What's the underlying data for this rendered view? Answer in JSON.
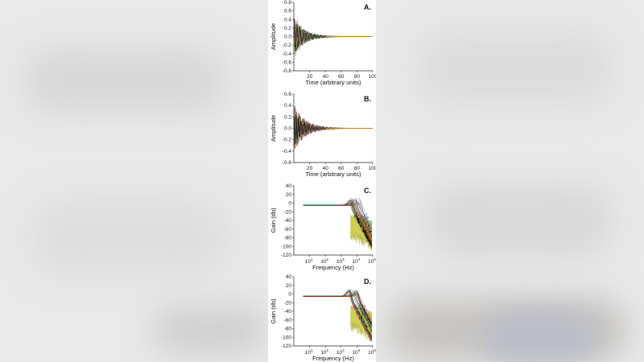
{
  "chart_data": [
    {
      "type": "line",
      "panel": "A.",
      "xlabel": "Time (arbitrary units)",
      "ylabel": "Amplitude",
      "xlim": [
        0,
        100
      ],
      "ylim": [
        -0.8,
        0.8
      ],
      "x_ticks": [
        "20",
        "40",
        "60",
        "80",
        "100"
      ],
      "y_ticks": [
        "0.8",
        "0.6",
        "0.4",
        "0.2",
        "0.0",
        "-0.2",
        "-0.4",
        "-0.6",
        "-0.8"
      ],
      "peak_amplitude": 0.6,
      "decay_to_zero_at": 40
    },
    {
      "type": "line",
      "panel": "B.",
      "xlabel": "Time (arbitrary units)",
      "ylabel": "Amplitude",
      "xlim": [
        0,
        100
      ],
      "ylim": [
        -0.6,
        0.6
      ],
      "x_ticks": [
        "20",
        "40",
        "60",
        "80",
        "100"
      ],
      "y_ticks": [
        "0.6",
        "0.4",
        "0.2",
        "0.0",
        "-0.2",
        "-0.4",
        "-0.6"
      ],
      "peak_amplitude": 0.5,
      "decay_to_zero_at": 40
    },
    {
      "type": "line",
      "panel": "C.",
      "xlabel": "Frequency (Hz)",
      "ylabel": "Gain (db)",
      "xscale": "log",
      "xlim": [
        1,
        100000
      ],
      "ylim": [
        -120,
        40
      ],
      "x_ticks": [
        {
          "base": "10",
          "exp": "1"
        },
        {
          "base": "10",
          "exp": "2"
        },
        {
          "base": "10",
          "exp": "3"
        },
        {
          "base": "10",
          "exp": "4"
        },
        {
          "base": "10",
          "exp": "5"
        }
      ],
      "y_ticks": [
        "40",
        "20",
        "0",
        "-20",
        "-40",
        "-60",
        "-80",
        "-100",
        "-120"
      ],
      "flat_gain_db": -5,
      "resonance_peak_db": 15,
      "rolloff_floor_db": -100
    },
    {
      "type": "line",
      "panel": "D.",
      "xlabel": "Frequency (Hz)",
      "ylabel": "Gain (db)",
      "xscale": "log",
      "xlim": [
        1,
        100000
      ],
      "ylim": [
        -120,
        40
      ],
      "x_ticks": [
        {
          "base": "10",
          "exp": "1"
        },
        {
          "base": "10",
          "exp": "2"
        },
        {
          "base": "10",
          "exp": "3"
        },
        {
          "base": "10",
          "exp": "4"
        },
        {
          "base": "10",
          "exp": "5"
        }
      ],
      "y_ticks": [
        "40",
        "20",
        "0",
        "-20",
        "-40",
        "-60",
        "-80",
        "-100",
        "-120"
      ],
      "flat_gain_db": -5,
      "resonance_peak_db": 15,
      "rolloff_floor_db": -100
    }
  ],
  "colors": {
    "series": [
      "#1f77b4",
      "#ff7f0e",
      "#2ca02c",
      "#d62728",
      "#9467bd",
      "#8c564b",
      "#e377c2",
      "#7f7f7f",
      "#bcbd22",
      "#17becf",
      "#000000"
    ],
    "yellow_band": "#c8c83a"
  }
}
